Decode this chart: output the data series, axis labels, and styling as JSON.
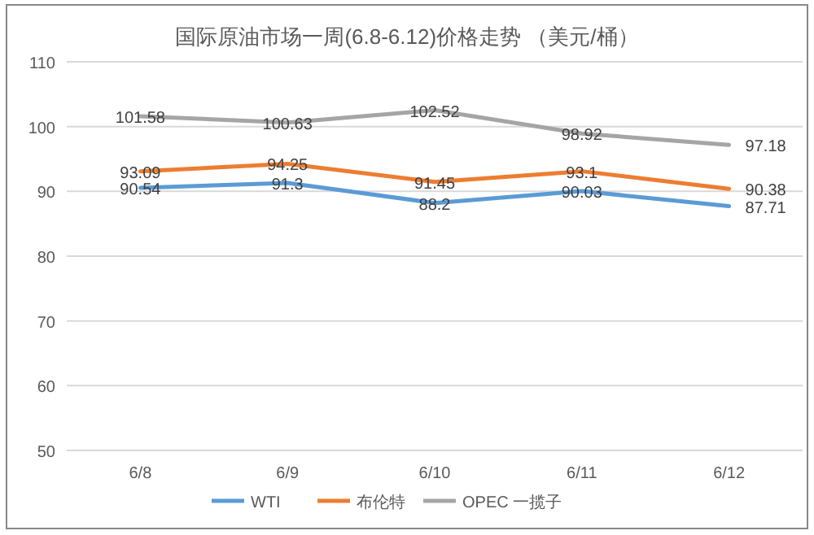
{
  "chart_data": {
    "type": "line",
    "title": "国际原油市场一周(6.8-6.12)价格走势 （美元/桶）",
    "categories": [
      "6/8",
      "6/9",
      "6/10",
      "6/11",
      "6/12"
    ],
    "series": [
      {
        "name": "WTI",
        "color": "#5b9bd5",
        "values": [
          90.54,
          91.3,
          88.2,
          90.03,
          87.71
        ]
      },
      {
        "name": "布伦特",
        "color": "#ed7d31",
        "values": [
          93.09,
          94.25,
          91.45,
          93.1,
          90.38
        ]
      },
      {
        "name": "OPEC 一揽子",
        "color": "#a5a5a5",
        "values": [
          101.58,
          100.63,
          102.52,
          98.92,
          97.18
        ]
      }
    ],
    "ylim": [
      50,
      110
    ],
    "yticks": [
      50,
      60,
      70,
      80,
      90,
      100,
      110
    ],
    "grid": "y",
    "legend": "bottom",
    "data_labels": true
  }
}
